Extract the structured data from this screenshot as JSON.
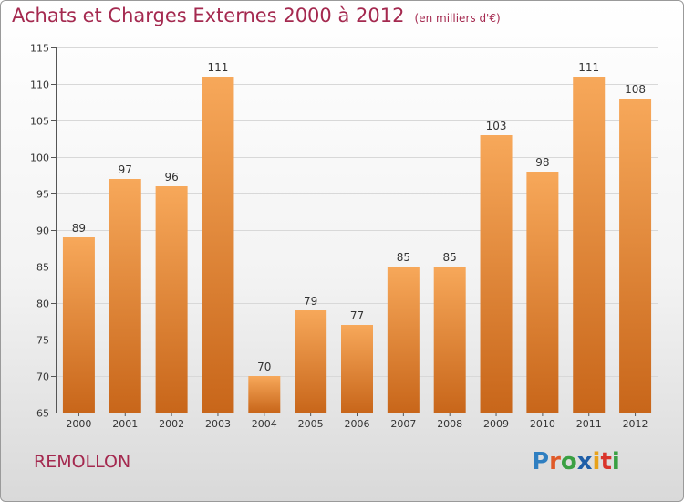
{
  "title": {
    "main": "Achats et Charges Externes 2000 à 2012",
    "unit": "(en milliers d'€)"
  },
  "town": "REMOLLON",
  "logo": {
    "text": "Proxiti",
    "letters": [
      {
        "char": "P",
        "color": "#2f7fc1"
      },
      {
        "char": "r",
        "color": "#e05a28"
      },
      {
        "char": "o",
        "color": "#3aa043"
      },
      {
        "char": "x",
        "color": "#1f5fa8"
      },
      {
        "char": "i",
        "color": "#e8a21b"
      },
      {
        "char": "t",
        "color": "#d9342b"
      },
      {
        "char": "i",
        "color": "#3aa043"
      }
    ]
  },
  "colors": {
    "title": "#a4294f",
    "bar_top": "#f7a85a",
    "bar_bottom": "#c8661a",
    "grid": "#d8d8d8"
  },
  "chart_data": {
    "type": "bar",
    "title": "Achats et Charges Externes 2000 à 2012",
    "subtitle": "(en milliers d'€)",
    "xlabel": "",
    "ylabel": "",
    "ylim": [
      65,
      115
    ],
    "yticks": [
      65,
      70,
      75,
      80,
      85,
      90,
      95,
      100,
      105,
      110,
      115
    ],
    "grid": true,
    "categories": [
      "2000",
      "2001",
      "2002",
      "2003",
      "2004",
      "2005",
      "2006",
      "2007",
      "2008",
      "2009",
      "2010",
      "2011",
      "2012"
    ],
    "values": [
      89,
      97,
      96,
      111,
      70,
      79,
      77,
      85,
      85,
      103,
      98,
      111,
      108
    ]
  }
}
